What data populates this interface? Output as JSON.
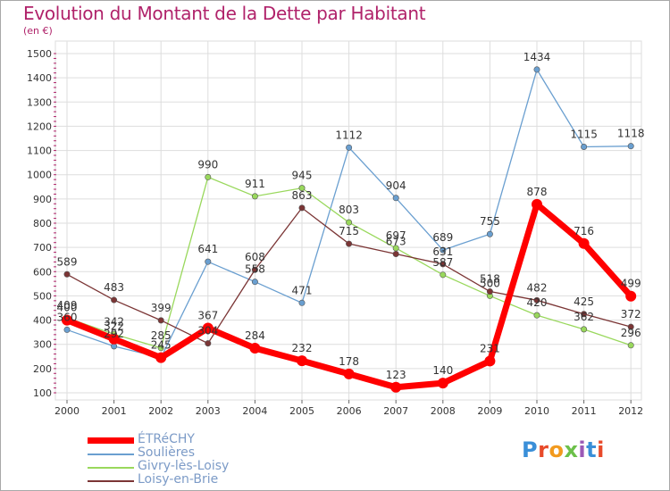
{
  "title": "Evolution du Montant de la Dette par Habitant",
  "subtitle": "(en €)",
  "logo_text": "Proxiti",
  "chart_data": {
    "type": "line",
    "title": "Evolution du Montant de la Dette par Habitant",
    "subtitle": "(en €)",
    "xlabel": "",
    "ylabel": "",
    "ylim": [
      100,
      1500
    ],
    "y_ticks": [
      100,
      200,
      300,
      400,
      500,
      600,
      700,
      800,
      900,
      1000,
      1100,
      1200,
      1300,
      1400,
      1500
    ],
    "grid": true,
    "legend_position": "bottom-left",
    "categories": [
      "2000",
      "2001",
      "2002",
      "2003",
      "2004",
      "2005",
      "2006",
      "2007",
      "2008",
      "2009",
      "2010",
      "2011",
      "2012"
    ],
    "series": [
      {
        "name": "ÉTRéCHY",
        "color": "#ff0000",
        "highlight": true,
        "values": [
          400,
          322,
          245,
          367,
          284,
          232,
          178,
          123,
          140,
          231,
          878,
          716,
          499
        ]
      },
      {
        "name": "Soulières",
        "color": "#6a9fd0",
        "highlight": false,
        "values": [
          360,
          292,
          245,
          641,
          558,
          471,
          1112,
          904,
          689,
          755,
          1434,
          1115,
          1118
        ]
      },
      {
        "name": "Givry-lès-Loisy",
        "color": "#99d85c",
        "highlight": false,
        "values": [
          409,
          342,
          285,
          990,
          911,
          945,
          803,
          697,
          587,
          500,
          420,
          362,
          296
        ]
      },
      {
        "name": "Loisy-en-Brie",
        "color": "#7b3535",
        "highlight": false,
        "values": [
          589,
          483,
          399,
          304,
          608,
          863,
          715,
          673,
          631,
          518,
          482,
          425,
          372
        ]
      }
    ],
    "data_labels": {
      "ÉTRéCHY": [
        "400",
        "322",
        "245",
        "367",
        "284",
        "232",
        "178",
        "123",
        "140",
        "231",
        "878",
        "716",
        "499"
      ],
      "Soulières": [
        "360",
        "292",
        "",
        "641",
        "558",
        "471",
        "1112",
        "904",
        "689",
        "755",
        "1434",
        "1115",
        "1118"
      ],
      "Givry-lès-Loisy": [
        "409",
        "342",
        "285",
        "990",
        "911",
        "945",
        "803",
        "697",
        "587",
        "500",
        "420",
        "362",
        "296"
      ],
      "Loisy-en-Brie": [
        "589",
        "483",
        "399",
        "304",
        "608",
        "863",
        "715",
        "673",
        "631",
        "518",
        "482",
        "425",
        "372"
      ]
    }
  },
  "colors": {
    "title": "#b0226a",
    "grid": "#dddddd",
    "axis": "#999999",
    "tick_marks": "#b0226a"
  }
}
